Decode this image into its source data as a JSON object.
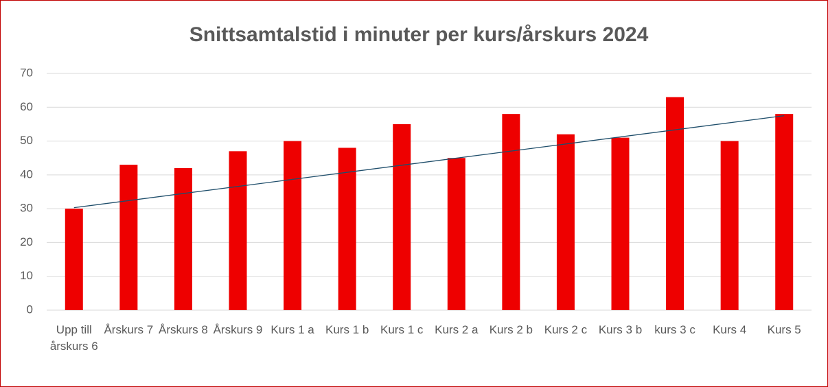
{
  "chart_data": {
    "type": "bar",
    "title": "Snittsamtalstid i minuter per kurs/årskurs 2024",
    "categories": [
      "Upp till årskurs 6",
      "Årskurs 7",
      "Årskurs 8",
      "Årskurs 9",
      "Kurs 1 a",
      "Kurs 1 b",
      "Kurs 1 c",
      "Kurs 2 a",
      "Kurs 2 b",
      "Kurs 2 c",
      "Kurs 3 b",
      "kurs 3 c",
      "Kurs 4",
      "Kurs 5"
    ],
    "values": [
      30,
      43,
      42,
      47,
      50,
      48,
      55,
      45,
      58,
      52,
      51,
      63,
      50,
      58
    ],
    "color": "#ee0000",
    "trendline": {
      "color": "#1f4e6b",
      "values": [
        30.3,
        57.5
      ]
    },
    "ylim": [
      0,
      70
    ],
    "yticks": [
      0,
      10,
      20,
      30,
      40,
      50,
      60,
      70
    ],
    "grid": true
  }
}
